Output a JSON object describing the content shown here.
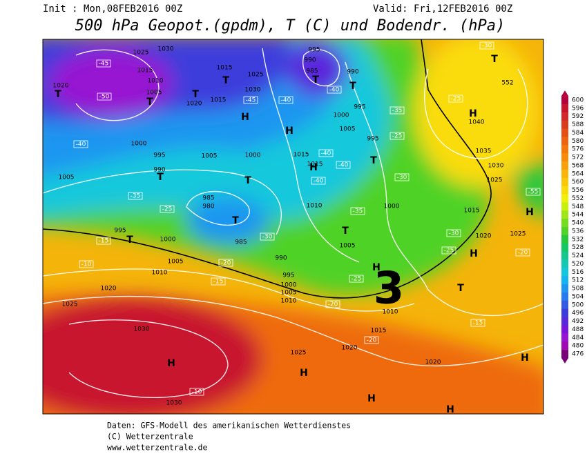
{
  "header": {
    "init": "Init : Mon,08FEB2016 00Z",
    "valid": "Valid: Fri,12FEB2016 00Z",
    "title": "500 hPa Geopot.(gpdm), T (C) und Bodendr. (hPa)"
  },
  "footer": {
    "line1": "Daten: GFS-Modell des amerikanischen Wetterdienstes",
    "line2": "(C) Wetterzentrale",
    "line3": "www.wetterzentrale.de"
  },
  "map": {
    "annotation": "3",
    "pressure_labels": [
      1025,
      1030,
      1015,
      1010,
      1005,
      1020,
      1020,
      1015,
      1015,
      1025,
      1030,
      995,
      990,
      985,
      990,
      995,
      1000,
      1005,
      1000,
      995,
      990,
      1005,
      1005,
      1000,
      1015,
      1015,
      985,
      980,
      985,
      1010,
      1000,
      1015,
      1020,
      1025,
      995,
      1000,
      1005,
      1010,
      990,
      995,
      1000,
      1005,
      1010,
      1005,
      1020,
      1025,
      1030,
      1015,
      1020,
      1025,
      1020,
      1030,
      1040,
      1035,
      1030,
      1025,
      552,
      995,
      1010
    ],
    "temp_labels": [
      -45,
      -40,
      -35,
      -25,
      -15,
      -10,
      -20,
      -15,
      -25,
      -20,
      -20,
      -10,
      -15,
      -30,
      -25,
      -35,
      -25,
      -30,
      -30,
      -25,
      -20,
      -40,
      -45,
      -40,
      -40,
      -40,
      -40,
      -35,
      -30,
      -50,
      -55
    ],
    "centers": [
      "H",
      "H",
      "H",
      "T",
      "T",
      "T",
      "T",
      "T",
      "T",
      "T",
      "T",
      "T",
      "T",
      "T",
      "T",
      "H",
      "T",
      "H",
      "H",
      "T",
      "H",
      "H",
      "H",
      "H",
      "H",
      "H"
    ]
  },
  "colorbar": {
    "ticks": [
      600,
      596,
      592,
      588,
      584,
      580,
      576,
      572,
      568,
      564,
      560,
      556,
      552,
      548,
      544,
      540,
      536,
      532,
      528,
      524,
      520,
      516,
      512,
      508,
      504,
      500,
      496,
      492,
      488,
      484,
      480,
      476
    ],
    "colors": [
      "#b4003c",
      "#c8142d",
      "#d22828",
      "#dc3c1e",
      "#e65014",
      "#ee640f",
      "#f5780a",
      "#f88c0a",
      "#faa00a",
      "#fab40a",
      "#fac80a",
      "#fadc0a",
      "#f0f00a",
      "#c8f00a",
      "#a0e614",
      "#78dc1e",
      "#50d228",
      "#28c83c",
      "#14c864",
      "#14c88c",
      "#14c8b4",
      "#14c8dc",
      "#14b4f0",
      "#1e96f0",
      "#2878f0",
      "#325ae6",
      "#3c3cdc",
      "#5a28dc",
      "#7814dc",
      "#9614d2",
      "#a00ab4",
      "#780078"
    ]
  }
}
